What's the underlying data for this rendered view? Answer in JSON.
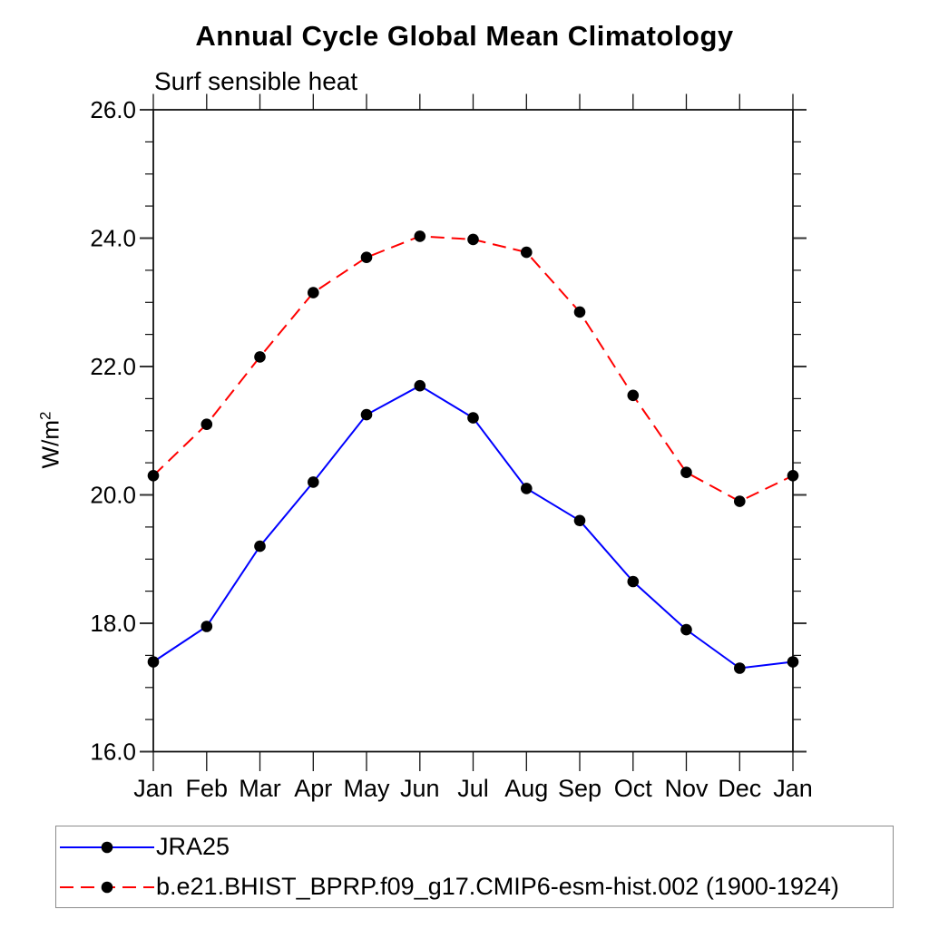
{
  "chart_data": {
    "type": "line",
    "title": "Annual Cycle Global Mean Climatology",
    "subtitle": "Surf sensible heat",
    "ylabel": "W/m²",
    "ylabel_base": "W/m",
    "ylabel_sup": "2",
    "categories": [
      "Jan",
      "Feb",
      "Mar",
      "Apr",
      "May",
      "Jun",
      "Jul",
      "Aug",
      "Sep",
      "Oct",
      "Nov",
      "Dec",
      "Jan"
    ],
    "ylim": [
      16.0,
      26.0
    ],
    "y_major_ticks": [
      16.0,
      18.0,
      20.0,
      22.0,
      24.0,
      26.0
    ],
    "y_tick_labels": [
      "16.0",
      "18.0",
      "20.0",
      "22.0",
      "24.0",
      "26.0"
    ],
    "y_minor_step": 0.5,
    "grid": false,
    "legend_position": "bottom-left",
    "marker": "filled-circle",
    "marker_color": "#000000",
    "axis_color": "#111111",
    "series": [
      {
        "name": "JRA25",
        "color": "#0000ff",
        "line_style": "solid",
        "values": [
          17.4,
          17.95,
          19.2,
          20.2,
          21.25,
          21.7,
          21.2,
          20.1,
          19.6,
          18.65,
          17.9,
          17.3,
          17.4
        ]
      },
      {
        "name": "b.e21.BHIST_BPRP.f09_g17.CMIP6-esm-hist.002 (1900-1924)",
        "color": "#ff0000",
        "line_style": "dashed",
        "values": [
          20.3,
          21.1,
          22.15,
          23.15,
          23.7,
          24.03,
          23.98,
          23.78,
          22.85,
          21.55,
          20.35,
          19.9,
          20.3
        ]
      }
    ]
  }
}
